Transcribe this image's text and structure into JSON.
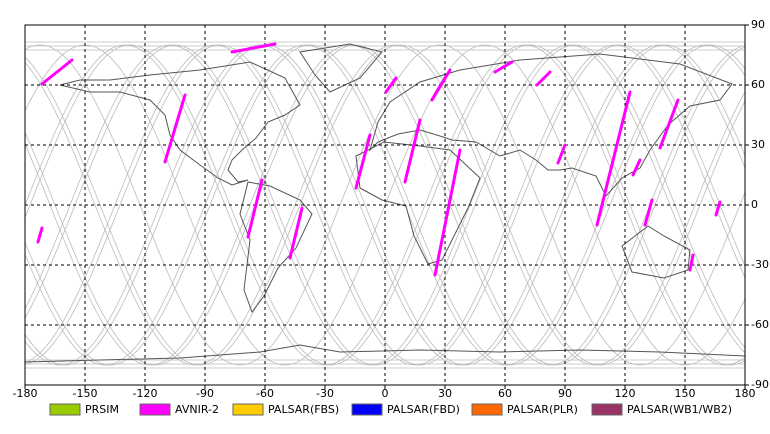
{
  "chart_data": {
    "type": "map",
    "xlim": [
      -180,
      180
    ],
    "ylim": [
      -90,
      90
    ],
    "xticks": [
      -180,
      -150,
      -120,
      -90,
      -60,
      -30,
      0,
      30,
      60,
      90,
      120,
      150,
      180
    ],
    "yticks": [
      90,
      60,
      30,
      0,
      -30,
      -60,
      -90
    ],
    "grid": true,
    "series": [
      {
        "name": "PRSIM",
        "color": "#99cc00",
        "tracks": []
      },
      {
        "name": "AVNIR-2",
        "color": "#ff00ff",
        "tracks": [
          {
            "lon": [
              -171.5,
              -156.5
            ],
            "lat": [
              60.5,
              72.5
            ]
          },
          {
            "lon": [
              -173.5,
              -171.5
            ],
            "lat": [
              -18.5,
              -11.5
            ]
          },
          {
            "lon": [
              -110,
              -100
            ],
            "lat": [
              21.5,
              55
            ]
          },
          {
            "lon": [
              -76.5,
              -55
            ],
            "lat": [
              76.5,
              80.5
            ]
          },
          {
            "lon": [
              -68.5,
              -61.5
            ],
            "lat": [
              -16,
              12.5
            ]
          },
          {
            "lon": [
              -47.5,
              -41.5
            ],
            "lat": [
              -26.5,
              -1.5
            ]
          },
          {
            "lon": [
              -14.5,
              -7.5
            ],
            "lat": [
              8.5,
              35
            ]
          },
          {
            "lon": [
              0.5,
              5.5
            ],
            "lat": [
              56.5,
              63.5
            ]
          },
          {
            "lon": [
              10,
              17.5
            ],
            "lat": [
              11.5,
              42.5
            ]
          },
          {
            "lon": [
              23.5,
              32.5
            ],
            "lat": [
              52.5,
              67.5
            ]
          },
          {
            "lon": [
              25,
              37.5
            ],
            "lat": [
              -35,
              27.5
            ]
          },
          {
            "lon": [
              55,
              63.5
            ],
            "lat": [
              66.5,
              71.5
            ]
          },
          {
            "lon": [
              76,
              82.5
            ],
            "lat": [
              60,
              66.5
            ]
          },
          {
            "lon": [
              86.5,
              90
            ],
            "lat": [
              21,
              30
            ]
          },
          {
            "lon": [
              106,
              122.5
            ],
            "lat": [
              -10,
              56.5
            ]
          },
          {
            "lon": [
              124,
              127.5
            ],
            "lat": [
              15,
              22.5
            ]
          },
          {
            "lon": [
              130,
              133.5
            ],
            "lat": [
              -10,
              2.5
            ]
          },
          {
            "lon": [
              137.5,
              146.5
            ],
            "lat": [
              28.5,
              52.5
            ]
          },
          {
            "lon": [
              152.5,
              154
            ],
            "lat": [
              -32.5,
              -25
            ]
          },
          {
            "lon": [
              165.5,
              167.5
            ],
            "lat": [
              -5,
              1.5
            ]
          }
        ]
      },
      {
        "name": "PALSAR(FBS)",
        "color": "#ffcc00",
        "tracks": []
      },
      {
        "name": "PALSAR(FBD)",
        "color": "#0000ff",
        "tracks": []
      },
      {
        "name": "PALSAR(PLR)",
        "color": "#ff6600",
        "tracks": []
      },
      {
        "name": "PALSAR(WB1/WB2)",
        "color": "#993366",
        "tracks": []
      }
    ]
  }
}
